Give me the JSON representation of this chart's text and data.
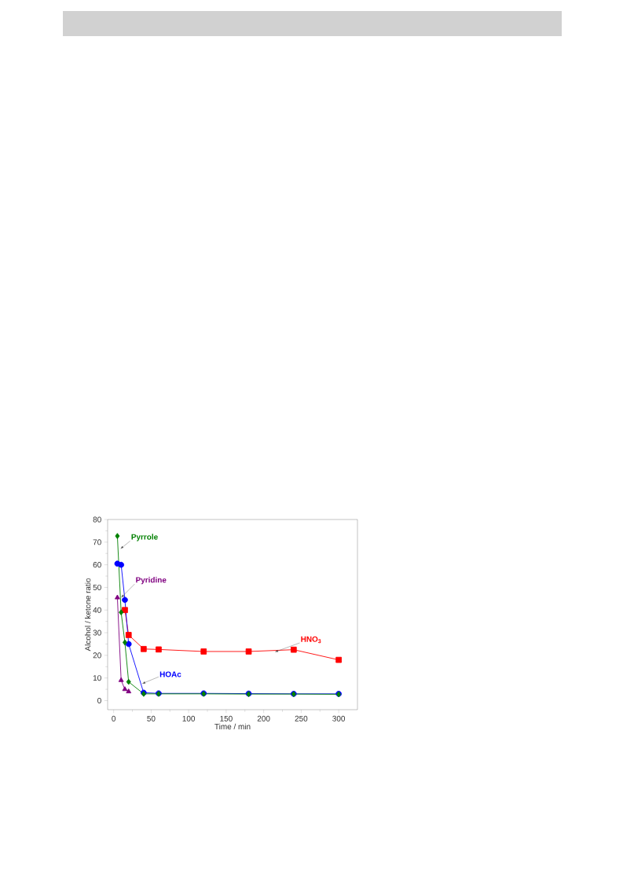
{
  "chart_data": {
    "type": "line",
    "xlabel": "Time / min",
    "ylabel": "Alcohol / ketone ratio",
    "xlim": [
      -8,
      325
    ],
    "ylim": [
      -4,
      80
    ],
    "xticks": [
      0,
      50,
      100,
      150,
      200,
      250,
      300
    ],
    "yticks": [
      0,
      10,
      20,
      30,
      40,
      50,
      60,
      70,
      80
    ],
    "line_style": "solid",
    "series": [
      {
        "name": "HNO$_{3}$",
        "color": "#ff0000",
        "marker": "square",
        "x": [
          15,
          20,
          40,
          60,
          120,
          180,
          240,
          300
        ],
        "values": [
          40,
          29,
          22.8,
          22.6,
          21.7,
          21.7,
          22.5,
          18
        ]
      },
      {
        "name": "HOAc",
        "color": "#0000ff",
        "marker": "circle",
        "x": [
          5,
          10,
          15,
          20,
          40,
          60,
          120,
          180,
          240,
          300
        ],
        "values": [
          60.5,
          60,
          44.5,
          25,
          3.5,
          3.2,
          3.2,
          3.1,
          3,
          3
        ]
      },
      {
        "name": "Pyridine",
        "color": "#800080",
        "marker": "triangle",
        "x": [
          5,
          10,
          15,
          20
        ],
        "values": [
          45.5,
          9,
          5,
          4
        ]
      },
      {
        "name": "Pyrrole",
        "color": "#008000",
        "marker": "diamond",
        "x": [
          5,
          10,
          15,
          20,
          40,
          60,
          120,
          180,
          240,
          300
        ],
        "values": [
          72.7,
          39,
          25.7,
          8.3,
          3,
          3,
          3,
          2.9,
          2.9,
          2.8
        ]
      }
    ]
  }
}
